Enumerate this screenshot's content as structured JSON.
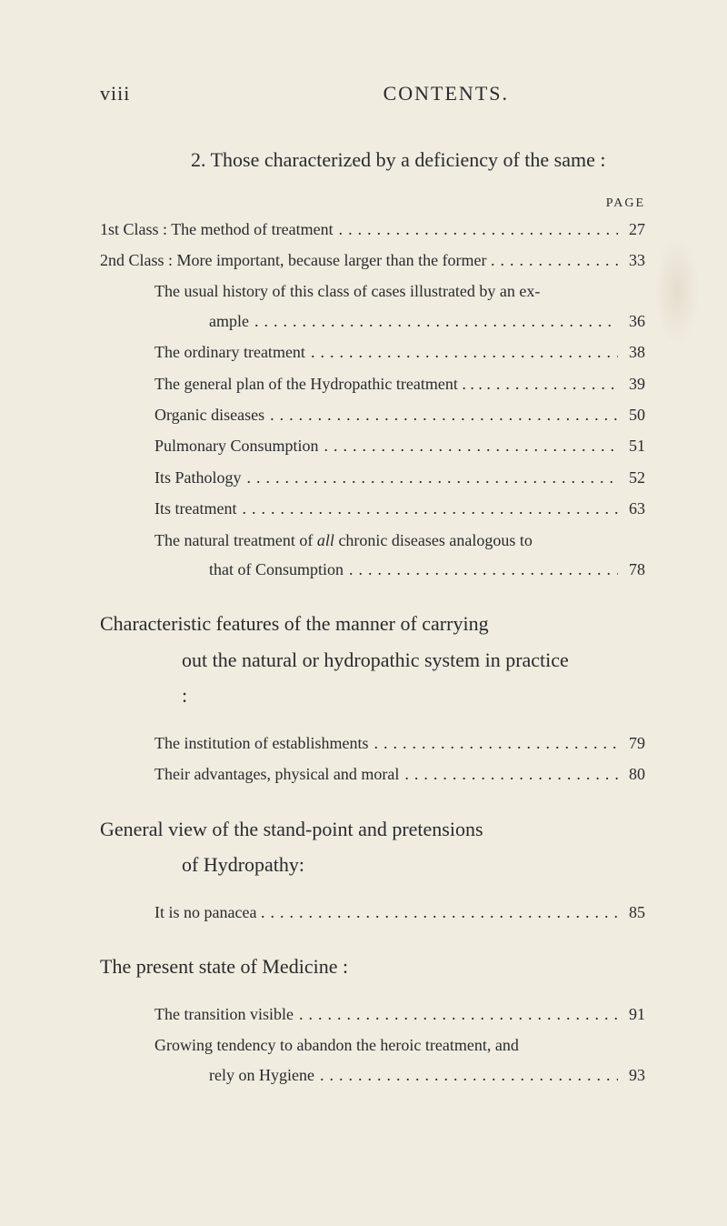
{
  "header": {
    "page_numeral": "viii",
    "title": "CONTENTS."
  },
  "section1": {
    "intro": "2. Those characterized by a deficiency of the same :",
    "page_label": "PAGE",
    "entries": [
      {
        "text": "1st Class :  The method of treatment",
        "page": "27",
        "indent": 0
      },
      {
        "text": "2nd Class :  More important, because larger than the former  .",
        "page": "33",
        "indent": 0
      },
      {
        "text_lines": [
          "The usual history of this class of cases illustrated by an ex-",
          "ample"
        ],
        "page": "36",
        "indent": 1
      },
      {
        "text": "The ordinary treatment",
        "page": "38",
        "indent": 1
      },
      {
        "text": "The general plan of the Hydropathic treatment  .   .   .   .",
        "page": "39",
        "indent": 1
      },
      {
        "text": "Organic diseases",
        "page": "50",
        "indent": 1
      },
      {
        "text": "Pulmonary Consumption",
        "page": "51",
        "indent": 1
      },
      {
        "text": "Its Pathology",
        "page": "52",
        "indent": 1
      },
      {
        "text": "Its treatment",
        "page": "63",
        "indent": 1
      },
      {
        "text_lines": [
          "The natural treatment of all chronic diseases analogous to",
          "that of Consumption"
        ],
        "page": "78",
        "indent": 1,
        "italic_word": "all"
      }
    ]
  },
  "section2": {
    "heading": "Characteristic features of the manner of carrying out the natural or hydropathic system in practice :",
    "entries": [
      {
        "text": "The institution of establishments",
        "page": "79",
        "indent": 1
      },
      {
        "text": "Their advantages, physical and moral",
        "page": "80",
        "indent": 1
      }
    ]
  },
  "section3": {
    "heading": "General view of the stand-point and pretensions of Hydropathy:",
    "entries": [
      {
        "text": "It is no panacea  .",
        "page": "85",
        "indent": 1
      }
    ]
  },
  "section4": {
    "heading": "The present state of Medicine :",
    "entries": [
      {
        "text": "The transition visible",
        "page": "91",
        "indent": 1
      },
      {
        "text_lines": [
          "Growing tendency to abandon the heroic treatment, and",
          "rely on Hygiene"
        ],
        "page": "93",
        "indent": 1
      }
    ]
  }
}
